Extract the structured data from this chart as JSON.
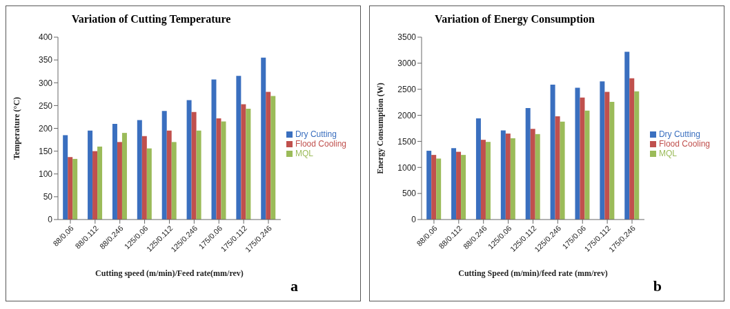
{
  "chart_data": [
    {
      "type": "bar",
      "title": "Variation of Cutting Temperature",
      "xlabel": "Cutting speed (m/min)/Feed  rate(mm/rev)",
      "ylabel": "Temperature  (°C)",
      "categories": [
        "88/0.06",
        "88/0.112",
        "88/0.246",
        "125/0.06",
        "125/0.112",
        "125/0.246",
        "175/0.06",
        "175/0.112",
        "175/0.246"
      ],
      "series": [
        {
          "name": "Dry Cutting",
          "color": "#3a6fbf",
          "values": [
            185,
            195,
            210,
            218,
            238,
            262,
            307,
            315,
            355
          ]
        },
        {
          "name": "Flood Cooling",
          "color": "#c0504d",
          "values": [
            137,
            150,
            170,
            183,
            195,
            236,
            222,
            253,
            280
          ]
        },
        {
          "name": "MQL",
          "color": "#9bbb59",
          "values": [
            133,
            160,
            190,
            156,
            170,
            195,
            215,
            243,
            271
          ]
        }
      ],
      "ylim": [
        0,
        400
      ],
      "yticks": [
        0,
        50,
        100,
        150,
        200,
        250,
        300,
        350,
        400
      ],
      "grid": false,
      "legend": "right",
      "annotations": [
        "a"
      ]
    },
    {
      "type": "bar",
      "title": "Variation of Energy Consumption",
      "xlabel": "Cutting Speed (m/min)/feed  rate (mm/rev)",
      "ylabel": "Energy  Consumption  (W)",
      "categories": [
        "88/0.06",
        "88/0.112",
        "88/0.246",
        "125/0.06",
        "125/0.112",
        "125/0.246",
        "175/0.06",
        "175/0.112",
        "175/0.246"
      ],
      "series": [
        {
          "name": "Dry Cutting",
          "color": "#3a6fbf",
          "values": [
            1320,
            1370,
            1940,
            1710,
            2140,
            2590,
            2530,
            2650,
            3220
          ]
        },
        {
          "name": "Flood Cooling",
          "color": "#c0504d",
          "values": [
            1240,
            1300,
            1530,
            1650,
            1740,
            1980,
            2340,
            2450,
            2710
          ]
        },
        {
          "name": "MQL",
          "color": "#9bbb59",
          "values": [
            1170,
            1240,
            1490,
            1560,
            1640,
            1880,
            2090,
            2260,
            2460
          ]
        }
      ],
      "ylim": [
        0,
        3500
      ],
      "yticks": [
        0,
        500,
        1000,
        1500,
        2000,
        2500,
        3000,
        3500
      ],
      "grid": false,
      "legend": "right",
      "annotations": [
        "b"
      ]
    }
  ]
}
